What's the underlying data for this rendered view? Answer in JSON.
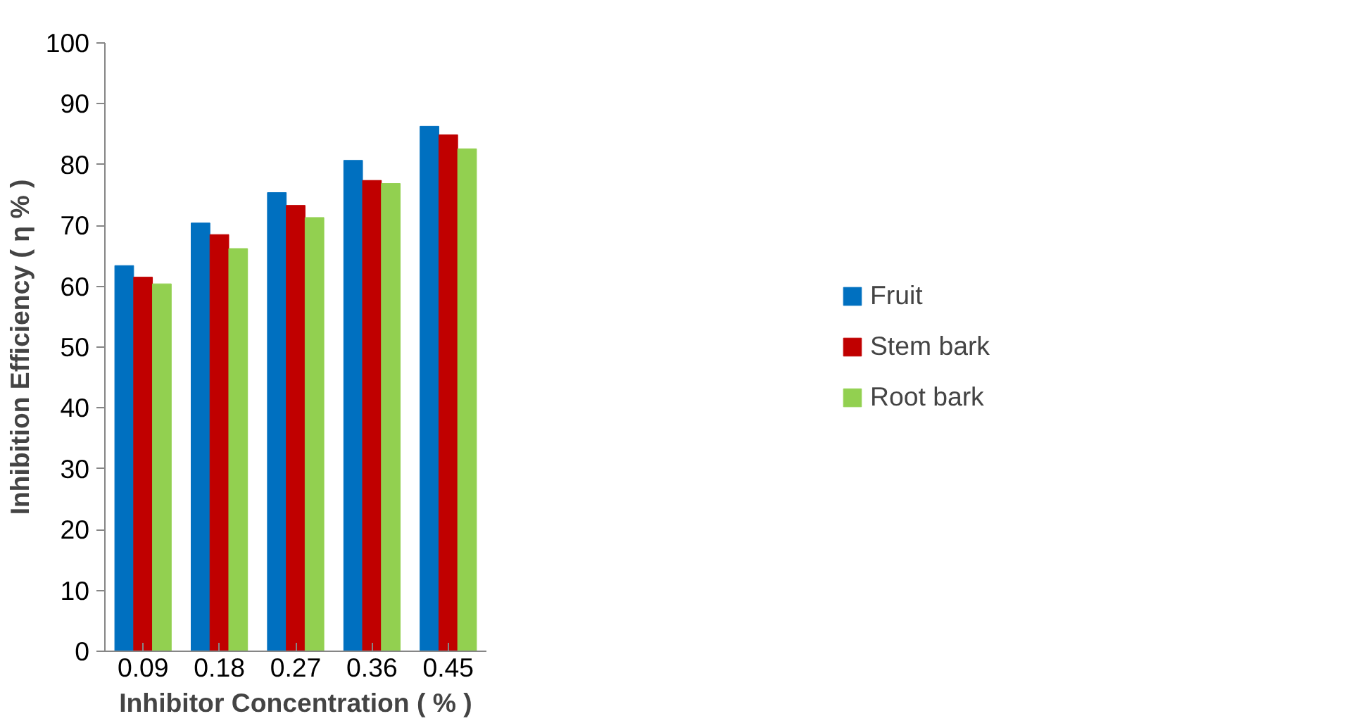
{
  "chart_data": {
    "type": "bar",
    "xlabel": "Inhibitor Concentration ( % )",
    "ylabel": "Inhibition Efficiency ( η % )",
    "categories": [
      "0.09",
      "0.18",
      "0.27",
      "0.36",
      "0.45"
    ],
    "series": [
      {
        "name": "Fruit",
        "color": "#0070c0",
        "values": [
          63.4,
          70.4,
          75.4,
          80.7,
          86.3
        ]
      },
      {
        "name": "Stem bark",
        "color": "#c00000",
        "values": [
          61.5,
          68.5,
          73.3,
          77.4,
          84.9
        ]
      },
      {
        "name": "Root bark",
        "color": "#92d050",
        "values": [
          60.4,
          66.2,
          71.3,
          76.9,
          82.6
        ]
      }
    ],
    "ylim": [
      0,
      100
    ],
    "yticks": [
      0,
      10,
      20,
      30,
      40,
      50,
      60,
      70,
      80,
      90,
      100
    ],
    "grid": false,
    "legend": "right"
  }
}
